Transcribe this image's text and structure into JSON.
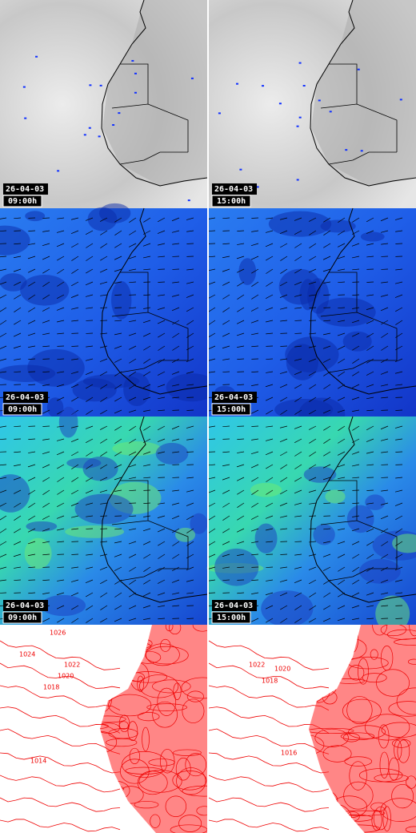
{
  "panels": [
    {
      "date": "26-04-03",
      "time": "09:00h"
    },
    {
      "date": "26-04-03",
      "time": "15:00h"
    },
    {
      "date": "26-04-03",
      "time": "09:00h"
    },
    {
      "date": "26-04-03",
      "time": "15:00h"
    },
    {
      "date": "26-04-03",
      "time": "09:00h"
    },
    {
      "date": "26-04-03",
      "time": "15:00h"
    }
  ],
  "isobars_left": [
    "1026",
    "1024",
    "1022",
    "1020",
    "1018",
    "1014"
  ],
  "isobars_right": [
    "1022",
    "1020",
    "1018",
    "1016"
  ]
}
